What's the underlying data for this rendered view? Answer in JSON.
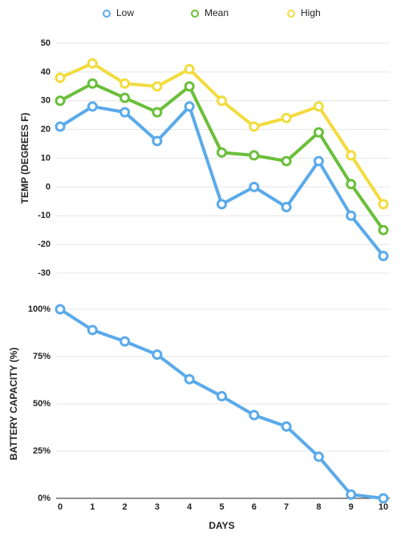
{
  "chart_data": [
    {
      "type": "line",
      "x": [
        0,
        1,
        2,
        3,
        4,
        5,
        6,
        7,
        8,
        9,
        10
      ],
      "xlim": [
        0,
        10
      ],
      "ylabel": "TEMP (DEGREES F)",
      "ylim": [
        -30,
        50
      ],
      "yticks": [
        -30,
        -20,
        -10,
        0,
        10,
        20,
        30,
        40,
        50
      ],
      "grid": true,
      "legend": "top",
      "series": [
        {
          "name": "Low",
          "color": "#5aaaea",
          "values": [
            21,
            28,
            26,
            16,
            28,
            -6,
            0,
            -7,
            9,
            -10,
            -24
          ]
        },
        {
          "name": "Mean",
          "color": "#6abf3a",
          "values": [
            30,
            36,
            31,
            26,
            35,
            12,
            11,
            9,
            19,
            1,
            -15
          ]
        },
        {
          "name": "High",
          "color": "#f2dc3e",
          "values": [
            38,
            43,
            36,
            35,
            41,
            30,
            21,
            24,
            28,
            11,
            -6
          ]
        }
      ]
    },
    {
      "type": "line",
      "x": [
        0,
        1,
        2,
        3,
        4,
        5,
        6,
        7,
        8,
        9,
        10
      ],
      "xlim": [
        0,
        10
      ],
      "xticks": [
        0,
        1,
        2,
        3,
        4,
        5,
        6,
        7,
        8,
        9,
        10
      ],
      "xlabel": "DAYS",
      "ylabel": "BATTERY CAPACITY (%)",
      "ylim": [
        0,
        100
      ],
      "yticks": [
        {
          "value": 0,
          "label": "0%"
        },
        {
          "value": 25,
          "label": "25%"
        },
        {
          "value": 50,
          "label": "50%"
        },
        {
          "value": 75,
          "label": "75%"
        },
        {
          "value": 100,
          "label": "100%"
        }
      ],
      "grid": true,
      "color": "#5aaaea",
      "values": [
        100,
        89,
        83,
        76,
        63,
        54,
        44,
        38,
        22,
        2,
        0
      ]
    }
  ]
}
